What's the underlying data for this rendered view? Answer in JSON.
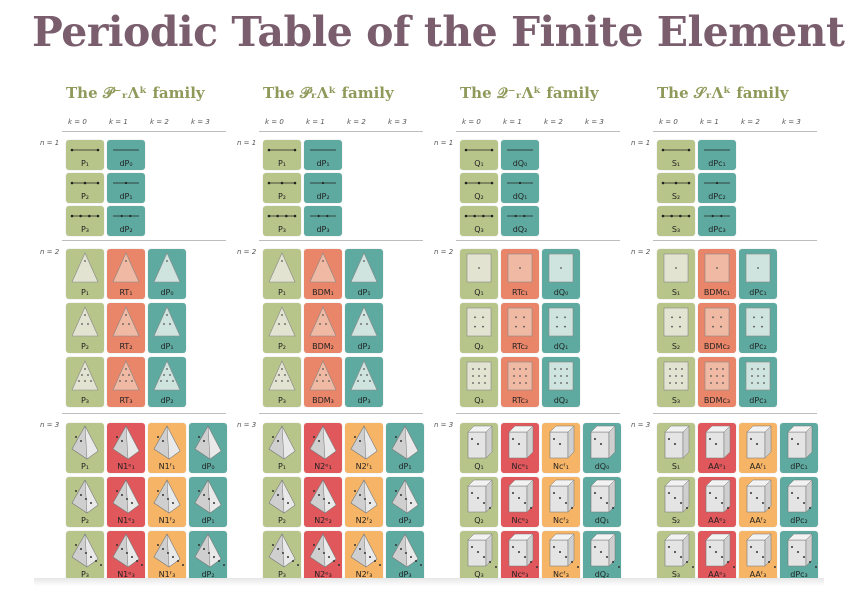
{
  "title": "Periodic Table of the Finite Elements",
  "colors": {
    "title": "#7a5e6e",
    "family_title": "#8f9a5a",
    "green": "#b7c58a",
    "red": "#e9866a",
    "teal": "#5eaaa0",
    "crimson": "#e0575c",
    "orange": "#f5b466"
  },
  "k_labels": [
    "k = 0",
    "k = 1",
    "k = 2",
    "k = 3"
  ],
  "n_labels": [
    "n = 1",
    "n = 2",
    "n = 3"
  ],
  "families": [
    {
      "title": "The 𝒫⁻ᵣΛᵏ family",
      "rows": [
        [
          [
            "P₁",
            "dP₀"
          ],
          [
            "P₂",
            "dP₁"
          ],
          [
            "P₃",
            "dP₂"
          ]
        ],
        [
          [
            "P₁",
            "RT₁",
            "dP₀"
          ],
          [
            "P₂",
            "RT₂",
            "dP₁"
          ],
          [
            "P₃",
            "RT₃",
            "dP₂"
          ]
        ],
        [
          [
            "P₁",
            "N1ᵉ₁",
            "N1ᶠ₁",
            "dP₀"
          ],
          [
            "P₂",
            "N1ᵉ₂",
            "N1ᶠ₂",
            "dP₁"
          ],
          [
            "P₃",
            "N1ᵉ₃",
            "N1ᶠ₃",
            "dP₂"
          ]
        ]
      ]
    },
    {
      "title": "The 𝒫ᵣΛᵏ family",
      "rows": [
        [
          [
            "P₁",
            "dP₁"
          ],
          [
            "P₂",
            "dP₂"
          ],
          [
            "P₃",
            "dP₃"
          ]
        ],
        [
          [
            "P₁",
            "BDM₁",
            "dP₁"
          ],
          [
            "P₂",
            "BDM₂",
            "dP₂"
          ],
          [
            "P₃",
            "BDM₃",
            "dP₃"
          ]
        ],
        [
          [
            "P₁",
            "N2ᵉ₁",
            "N2ᶠ₁",
            "dP₁"
          ],
          [
            "P₂",
            "N2ᵉ₂",
            "N2ᶠ₂",
            "dP₂"
          ],
          [
            "P₃",
            "N2ᵉ₃",
            "N2ᶠ₃",
            "dP₃"
          ]
        ]
      ]
    },
    {
      "title": "The 𝒬⁻ᵣΛᵏ family",
      "rows": [
        [
          [
            "Q₁",
            "dQ₀"
          ],
          [
            "Q₂",
            "dQ₁"
          ],
          [
            "Q₃",
            "dQ₂"
          ]
        ],
        [
          [
            "Q₁",
            "RTc₁",
            "dQ₀"
          ],
          [
            "Q₂",
            "RTc₂",
            "dQ₁"
          ],
          [
            "Q₃",
            "RTc₃",
            "dQ₂"
          ]
        ],
        [
          [
            "Q₁",
            "Ncᵉ₁",
            "Ncᶠ₁",
            "dQ₀"
          ],
          [
            "Q₂",
            "Ncᵉ₂",
            "Ncᶠ₂",
            "dQ₁"
          ],
          [
            "Q₃",
            "Ncᵉ₃",
            "Ncᶠ₃",
            "dQ₂"
          ]
        ]
      ]
    },
    {
      "title": "The 𝒮ᵣΛᵏ family",
      "rows": [
        [
          [
            "S₁",
            "dPc₁"
          ],
          [
            "S₂",
            "dPc₂"
          ],
          [
            "S₃",
            "dPc₃"
          ]
        ],
        [
          [
            "S₁",
            "BDMc₁",
            "dPc₁"
          ],
          [
            "S₂",
            "BDMc₂",
            "dPc₂"
          ],
          [
            "S₃",
            "BDMc₃",
            "dPc₃"
          ]
        ],
        [
          [
            "S₁",
            "AAᵉ₁",
            "AAᶠ₁",
            "dPc₁"
          ],
          [
            "S₂",
            "AAᵉ₂",
            "AAᶠ₂",
            "dPc₂"
          ],
          [
            "S₃",
            "AAᵉ₃",
            "AAᶠ₃",
            "dPc₃"
          ]
        ]
      ]
    }
  ]
}
